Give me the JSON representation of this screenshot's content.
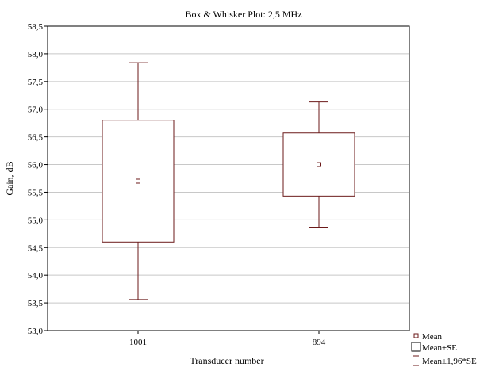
{
  "chart_data": {
    "type": "boxplot",
    "title": "Box & Whisker Plot:  2,5 MHz",
    "xlabel": "Transducer number",
    "ylabel": "Gain, dB",
    "ylim": [
      53.0,
      58.5
    ],
    "yticks": [
      "53,0",
      "53,5",
      "54,0",
      "54,5",
      "55,0",
      "55,5",
      "56,0",
      "56,5",
      "57,0",
      "57,5",
      "58,0",
      "58,5"
    ],
    "grid": true,
    "legend_position": "bottom-right",
    "categories": [
      "1001",
      "894"
    ],
    "groups": [
      {
        "label": "1001",
        "mean": 55.7,
        "se_low": 54.6,
        "se_high": 56.8,
        "ci_low": 53.56,
        "ci_high": 57.84
      },
      {
        "label": "894",
        "mean": 56.0,
        "se_low": 55.43,
        "se_high": 56.57,
        "ci_low": 54.87,
        "ci_high": 57.13
      }
    ],
    "legend": [
      {
        "symbol": "point",
        "label": "Mean"
      },
      {
        "symbol": "box",
        "label": "Mean±SE"
      },
      {
        "symbol": "whisker",
        "label": "Mean±1,96*SE"
      }
    ],
    "colors": {
      "series": "#6b1a1a",
      "grid": "#c8c8c8",
      "frame": "#000000"
    }
  }
}
